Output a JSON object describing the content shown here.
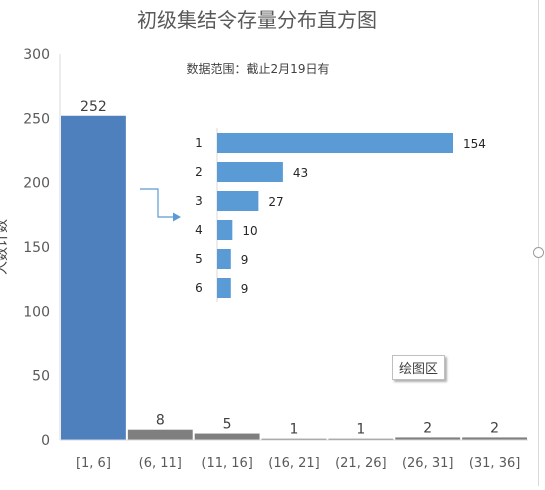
{
  "chart_data": [
    {
      "type": "bar",
      "title": "初级集结令存量分布直方图",
      "subtitle": "数据范围：截止2月19日有",
      "ylabel": "人数计数",
      "xlabel": "",
      "categories": [
        "[1, 6]",
        "(6, 11]",
        "(11, 16]",
        "(16, 21]",
        "(21, 26]",
        "(26, 31]",
        "(31, 36]"
      ],
      "values": [
        252,
        8,
        5,
        1,
        1,
        2,
        2
      ],
      "yticks": [
        "0",
        "50",
        "100",
        "150",
        "200",
        "250",
        "300"
      ],
      "ylim": [
        0,
        300
      ],
      "grid": false,
      "legend": "none",
      "colors": {
        "first_bar": "#4e80bd",
        "other_bars": "#7f7f7f"
      }
    },
    {
      "type": "bar",
      "orientation": "horizontal",
      "categories": [
        "1",
        "2",
        "3",
        "4",
        "5",
        "6"
      ],
      "values": [
        154,
        43,
        27,
        10,
        9,
        9
      ],
      "xlim": [
        0,
        160
      ],
      "grid": false,
      "legend": "none",
      "colors": {
        "bars": "#5b9bd5"
      }
    }
  ],
  "ui": {
    "plot_area_label": "绘图区"
  }
}
